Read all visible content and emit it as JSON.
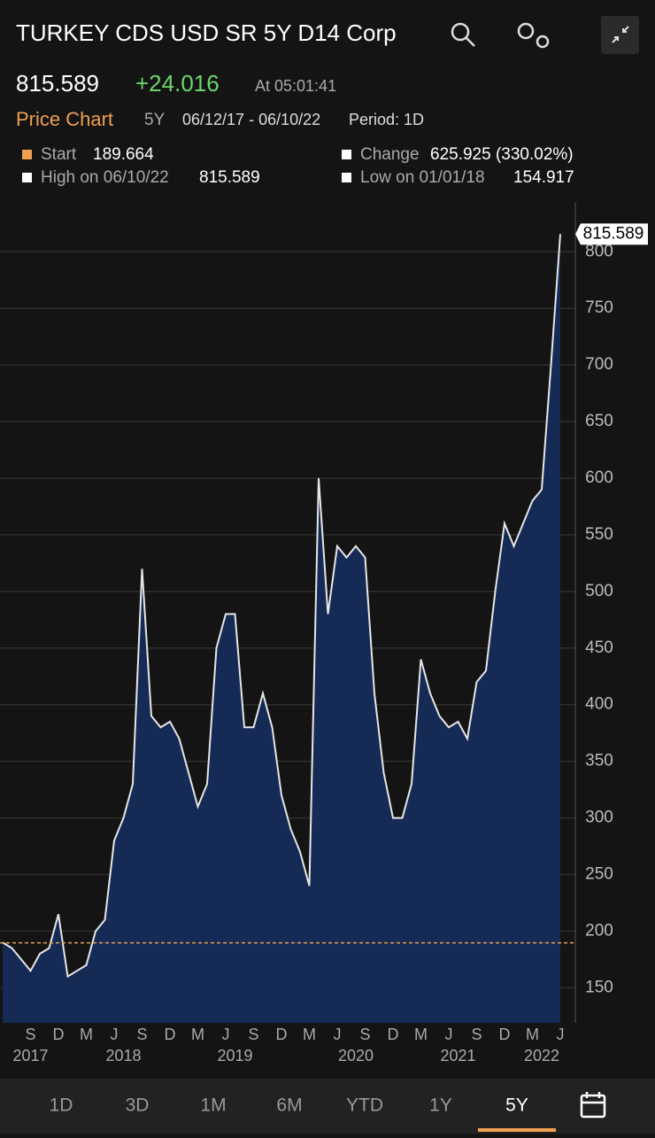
{
  "header": {
    "title": "TURKEY CDS USD SR 5Y D14 Corp",
    "price": "815.589",
    "change": "+24.016",
    "time": "At 05:01:41"
  },
  "subheader": {
    "label": "Price Chart",
    "range": "5Y",
    "dates": "06/12/17 - 06/10/22",
    "period": "Period: 1D"
  },
  "stats": [
    {
      "label": "Start",
      "value": "189.664"
    },
    {
      "label": "Change",
      "value": "625.925 (330.02%)"
    },
    {
      "label": "High on 06/10/22",
      "value": "815.589"
    },
    {
      "label": "Low on 01/01/18",
      "value": "154.917"
    }
  ],
  "chart_data": {
    "type": "line",
    "x": [
      "2017-06",
      "2017-07",
      "2017-08",
      "2017-09",
      "2017-10",
      "2017-11",
      "2017-12",
      "2018-01",
      "2018-02",
      "2018-03",
      "2018-04",
      "2018-05",
      "2018-06",
      "2018-07",
      "2018-08",
      "2018-09",
      "2018-10",
      "2018-11",
      "2018-12",
      "2019-01",
      "2019-02",
      "2019-03",
      "2019-04",
      "2019-05",
      "2019-06",
      "2019-07",
      "2019-08",
      "2019-09",
      "2019-10",
      "2019-11",
      "2019-12",
      "2020-01",
      "2020-02",
      "2020-03",
      "2020-04",
      "2020-05",
      "2020-06",
      "2020-07",
      "2020-08",
      "2020-09",
      "2020-10",
      "2020-11",
      "2020-12",
      "2021-01",
      "2021-02",
      "2021-03",
      "2021-04",
      "2021-05",
      "2021-06",
      "2021-07",
      "2021-08",
      "2021-09",
      "2021-10",
      "2021-11",
      "2021-12",
      "2022-01",
      "2022-02",
      "2022-03",
      "2022-04",
      "2022-05",
      "2022-06"
    ],
    "values": [
      190,
      185,
      175,
      165,
      180,
      185,
      215,
      160,
      165,
      170,
      200,
      210,
      280,
      300,
      330,
      520,
      390,
      380,
      385,
      370,
      340,
      310,
      330,
      450,
      480,
      480,
      380,
      380,
      410,
      380,
      320,
      290,
      270,
      240,
      600,
      480,
      540,
      530,
      540,
      530,
      410,
      340,
      300,
      300,
      330,
      440,
      410,
      390,
      380,
      385,
      370,
      420,
      430,
      500,
      560,
      540,
      560,
      580,
      590,
      700,
      815.589
    ],
    "color": "#e6e6e6",
    "fill_color": "#152a55",
    "ylim": [
      119,
      844
    ],
    "yticks": [
      150,
      200,
      250,
      300,
      350,
      400,
      450,
      500,
      550,
      600,
      650,
      700,
      750,
      800
    ],
    "grid": true,
    "start_value": 189.664,
    "start_line_color": "#e8a050",
    "xticks": [
      {
        "value": "2017-09",
        "label": "S"
      },
      {
        "value": "2017-12",
        "label": "D"
      },
      {
        "value": "2018-03",
        "label": "M"
      },
      {
        "value": "2018-06",
        "label": "J"
      },
      {
        "value": "2018-09",
        "label": "S"
      },
      {
        "value": "2018-12",
        "label": "D"
      },
      {
        "value": "2019-03",
        "label": "M"
      },
      {
        "value": "2019-06",
        "label": "J"
      },
      {
        "value": "2019-09",
        "label": "S"
      },
      {
        "value": "2019-12",
        "label": "D"
      },
      {
        "value": "2020-03",
        "label": "M"
      },
      {
        "value": "2020-06",
        "label": "J"
      },
      {
        "value": "2020-09",
        "label": "S"
      },
      {
        "value": "2020-12",
        "label": "D"
      },
      {
        "value": "2021-03",
        "label": "M"
      },
      {
        "value": "2021-06",
        "label": "J"
      },
      {
        "value": "2021-09",
        "label": "S"
      },
      {
        "value": "2021-12",
        "label": "D"
      },
      {
        "value": "2022-03",
        "label": "M"
      },
      {
        "value": "2022-06",
        "label": "J"
      }
    ],
    "year_labels": [
      {
        "value": "2017-09",
        "label": "2017"
      },
      {
        "value": "2018-07",
        "label": "2018"
      },
      {
        "value": "2019-07",
        "label": "2019"
      },
      {
        "value": "2020-08",
        "label": "2020"
      },
      {
        "value": "2021-07",
        "label": "2021"
      },
      {
        "value": "2022-04",
        "label": "2022"
      }
    ]
  },
  "periods": [
    "1D",
    "3D",
    "1M",
    "6M",
    "YTD",
    "1Y",
    "5Y"
  ],
  "selected_period": "5Y"
}
